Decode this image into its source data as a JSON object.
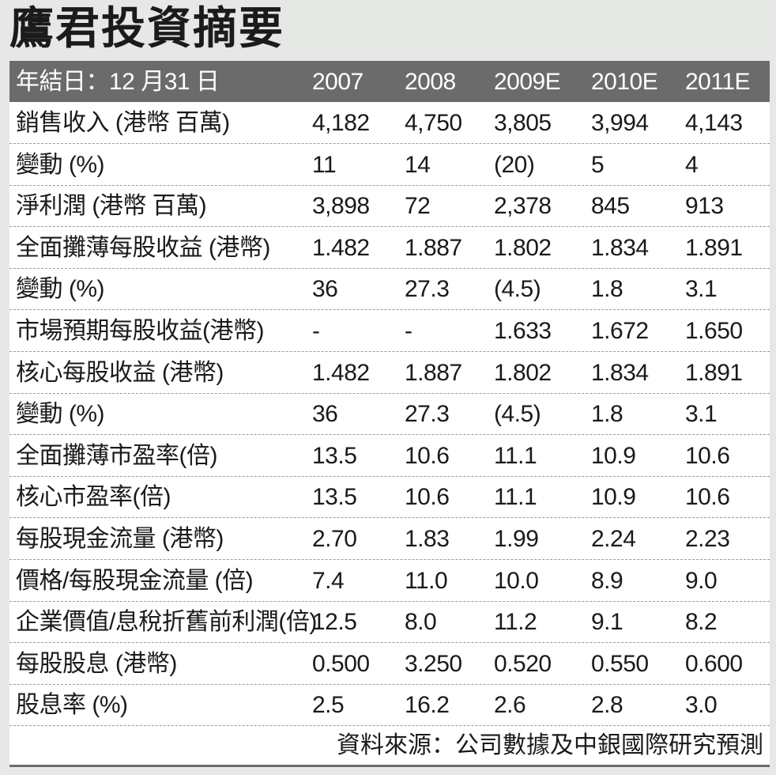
{
  "title": "鷹君投資摘要",
  "header": [
    "年結日：12 月31 日",
    "2007",
    "2008",
    "2009E",
    "2010E",
    "2011E"
  ],
  "rows": [
    [
      "銷售收入 (港幣 百萬)",
      "4,182",
      "4,750",
      "3,805",
      "3,994",
      "4,143"
    ],
    [
      "變動 (%)",
      "11",
      "14",
      "(20)",
      "5",
      "4"
    ],
    [
      "淨利潤 (港幣 百萬)",
      "3,898",
      "72",
      "2,378",
      "845",
      "913"
    ],
    [
      "全面攤薄每股收益 (港幣)",
      "1.482",
      "1.887",
      "1.802",
      "1.834",
      "1.891"
    ],
    [
      "變動 (%)",
      "36",
      "27.3",
      "(4.5)",
      "1.8",
      "3.1"
    ],
    [
      "市場預期每股收益(港幣)",
      "-",
      "-",
      "1.633",
      "1.672",
      "1.650"
    ],
    [
      "核心每股收益 (港幣)",
      "1.482",
      "1.887",
      "1.802",
      "1.834",
      "1.891"
    ],
    [
      "變動 (%)",
      "36",
      "27.3",
      "(4.5)",
      "1.8",
      "3.1"
    ],
    [
      "全面攤薄市盈率(倍)",
      "13.5",
      "10.6",
      "11.1",
      "10.9",
      "10.6"
    ],
    [
      "核心市盈率(倍)",
      "13.5",
      "10.6",
      "11.1",
      "10.9",
      "10.6"
    ],
    [
      "每股現金流量 (港幣)",
      "2.70",
      "1.83",
      "1.99",
      "2.24",
      "2.23"
    ],
    [
      "價格/每股現金流量 (倍)",
      "7.4",
      "11.0",
      "10.0",
      "8.9",
      "9.0"
    ],
    [
      "企業價值/息稅折舊前利潤(倍)",
      "12.5",
      "8.0",
      "11.2",
      "9.1",
      "8.2"
    ],
    [
      "每股股息 (港幣)",
      "0.500",
      "3.250",
      "0.520",
      "0.550",
      "0.600"
    ],
    [
      "股息率 (%)",
      "2.5",
      "16.2",
      "2.6",
      "2.8",
      "3.0"
    ]
  ],
  "source": "資料來源：公司數據及中銀國際研究預測",
  "colors": {
    "background": "#e6e8e5",
    "header_bg": "#6b6b6b",
    "header_text": "#ffffff",
    "panel_bg": "#ffffff"
  }
}
